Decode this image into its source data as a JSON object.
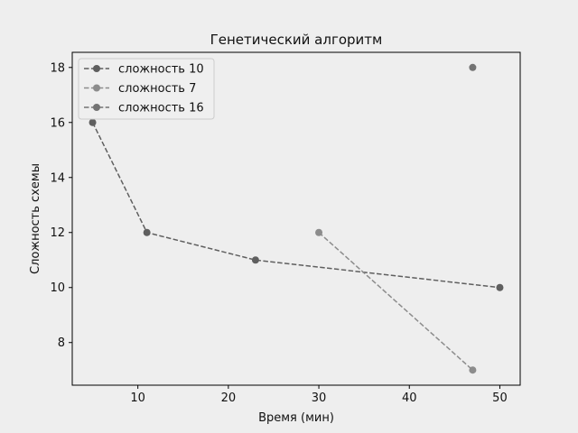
{
  "chart_data": {
    "type": "line",
    "title": "Генетический алгоритм",
    "xlabel": "Время (мин)",
    "ylabel": "Сложность схемы",
    "xlim": [
      2.75,
      52.25
    ],
    "ylim": [
      6.45,
      18.55
    ],
    "x_ticks": [
      10,
      20,
      30,
      40,
      50
    ],
    "y_ticks": [
      8,
      10,
      12,
      14,
      16,
      18
    ],
    "grid": false,
    "legend_position": "upper-left",
    "series": [
      {
        "name": "сложность 10",
        "color": "#5f5f5f",
        "line_style": "dashed",
        "marker": "circle",
        "x": [
          5,
          11,
          23,
          50
        ],
        "y": [
          16,
          12,
          11,
          10
        ]
      },
      {
        "name": "сложность 7",
        "color": "#8c8c8c",
        "line_style": "dashed",
        "marker": "circle",
        "x": [
          30,
          47
        ],
        "y": [
          12,
          7
        ]
      },
      {
        "name": "сложность 16",
        "color": "#737373",
        "line_style": "dashed",
        "marker": "circle",
        "x": [
          47
        ],
        "y": [
          18
        ]
      }
    ]
  }
}
